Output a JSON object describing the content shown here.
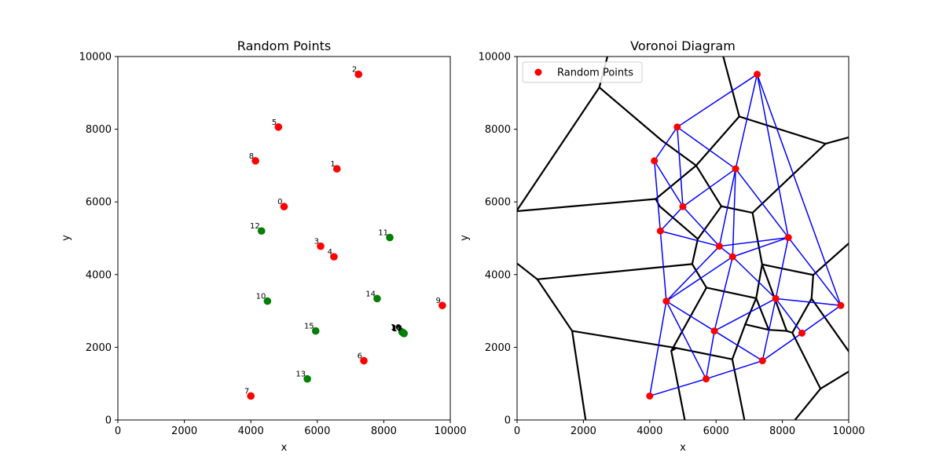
{
  "chart_data": [
    {
      "type": "scatter",
      "title": "Random Points",
      "xlabel": "x",
      "ylabel": "y",
      "xlim": [
        0,
        10000
      ],
      "ylim": [
        0,
        10000
      ],
      "xticks": [
        "0",
        "2000",
        "4000",
        "6000",
        "8000",
        "10000"
      ],
      "yticks": [
        "0",
        "2000",
        "4000",
        "6000",
        "8000",
        "10000"
      ],
      "grid": false,
      "colors": {
        "red_points": "#ff0000",
        "green_points": "#008000"
      },
      "points": [
        {
          "label": "0",
          "x": 5000,
          "y": 5870,
          "color": "red"
        },
        {
          "label": "1",
          "x": 6590,
          "y": 6910,
          "color": "red"
        },
        {
          "label": "2",
          "x": 7240,
          "y": 9510,
          "color": "red"
        },
        {
          "label": "3",
          "x": 6100,
          "y": 4780,
          "color": "red"
        },
        {
          "label": "4",
          "x": 6500,
          "y": 4490,
          "color": "red"
        },
        {
          "label": "5",
          "x": 4830,
          "y": 8060,
          "color": "red"
        },
        {
          "label": "6",
          "x": 7400,
          "y": 1630,
          "color": "red"
        },
        {
          "label": "7",
          "x": 4000,
          "y": 660,
          "color": "red"
        },
        {
          "label": "8",
          "x": 4140,
          "y": 7130,
          "color": "red"
        },
        {
          "label": "9",
          "x": 9760,
          "y": 3150,
          "color": "red"
        },
        {
          "label": "10",
          "x": 4500,
          "y": 3270,
          "color": "green"
        },
        {
          "label": "11",
          "x": 8180,
          "y": 5020,
          "color": "green"
        },
        {
          "label": "12",
          "x": 4320,
          "y": 5200,
          "color": "green"
        },
        {
          "label": "13",
          "x": 5700,
          "y": 1130,
          "color": "green"
        },
        {
          "label": "14",
          "x": 7800,
          "y": 3340,
          "color": "green"
        },
        {
          "label": "15",
          "x": 5950,
          "y": 2450,
          "color": "green"
        },
        {
          "label": "16",
          "x": 8550,
          "y": 2420,
          "color": "green"
        },
        {
          "label": "17",
          "x": 8590,
          "y": 2390,
          "color": "green"
        },
        {
          "label": "18",
          "x": 8570,
          "y": 2410,
          "color": "green"
        },
        {
          "label": "19",
          "x": 8610,
          "y": 2380,
          "color": "green"
        },
        {
          "label": "20",
          "x": 8580,
          "y": 2400,
          "color": "green"
        }
      ]
    },
    {
      "type": "scatter",
      "title": "Voronoi Diagram",
      "xlabel": "x",
      "ylabel": "y",
      "xlim": [
        0,
        10000
      ],
      "ylim": [
        0,
        10000
      ],
      "xticks": [
        "0",
        "2000",
        "4000",
        "6000",
        "8000",
        "10000"
      ],
      "yticks": [
        "0",
        "2000",
        "4000",
        "6000",
        "8000",
        "10000"
      ],
      "grid": false,
      "legend": {
        "position": "upper-left",
        "entries": [
          "Random Points"
        ]
      },
      "colors": {
        "points": "#ff0000",
        "voronoi_edges": "#000000",
        "triangulation_edges": "#0000ff"
      },
      "points": [
        [
          5000,
          5870
        ],
        [
          6590,
          6910
        ],
        [
          7240,
          9510
        ],
        [
          6100,
          4780
        ],
        [
          6500,
          4490
        ],
        [
          4830,
          8060
        ],
        [
          7400,
          1630
        ],
        [
          4000,
          660
        ],
        [
          4140,
          7130
        ],
        [
          9760,
          3150
        ],
        [
          4500,
          3270
        ],
        [
          8180,
          5020
        ],
        [
          4320,
          5200
        ],
        [
          5700,
          1130
        ],
        [
          7800,
          3340
        ],
        [
          5950,
          2450
        ],
        [
          8590,
          2390
        ]
      ],
      "triangulation_edges": [
        [
          [
            4830,
            8060
          ],
          [
            7240,
            9510
          ]
        ],
        [
          [
            7240,
            9510
          ],
          [
            6590,
            6910
          ]
        ],
        [
          [
            4830,
            8060
          ],
          [
            6590,
            6910
          ]
        ],
        [
          [
            4830,
            8060
          ],
          [
            5000,
            5870
          ]
        ],
        [
          [
            4830,
            8060
          ],
          [
            4140,
            7130
          ]
        ],
        [
          [
            4140,
            7130
          ],
          [
            5000,
            5870
          ]
        ],
        [
          [
            5000,
            5870
          ],
          [
            6590,
            6910
          ]
        ],
        [
          [
            4140,
            7130
          ],
          [
            4320,
            5200
          ]
        ],
        [
          [
            4320,
            5200
          ],
          [
            5000,
            5870
          ]
        ],
        [
          [
            7240,
            9510
          ],
          [
            8180,
            5020
          ]
        ],
        [
          [
            7240,
            9510
          ],
          [
            9760,
            3150
          ]
        ],
        [
          [
            6590,
            6910
          ],
          [
            8180,
            5020
          ]
        ],
        [
          [
            6590,
            6910
          ],
          [
            6100,
            4780
          ]
        ],
        [
          [
            6590,
            6910
          ],
          [
            6500,
            4490
          ]
        ],
        [
          [
            5000,
            5870
          ],
          [
            6100,
            4780
          ]
        ],
        [
          [
            4320,
            5200
          ],
          [
            6100,
            4780
          ]
        ],
        [
          [
            6100,
            4780
          ],
          [
            6500,
            4490
          ]
        ],
        [
          [
            6100,
            4780
          ],
          [
            8180,
            5020
          ]
        ],
        [
          [
            6500,
            4490
          ],
          [
            8180,
            5020
          ]
        ],
        [
          [
            8180,
            5020
          ],
          [
            9760,
            3150
          ]
        ],
        [
          [
            8180,
            5020
          ],
          [
            7800,
            3340
          ]
        ],
        [
          [
            6100,
            4780
          ],
          [
            4500,
            3270
          ]
        ],
        [
          [
            6500,
            4490
          ],
          [
            4500,
            3270
          ]
        ],
        [
          [
            6500,
            4490
          ],
          [
            5950,
            2450
          ]
        ],
        [
          [
            6500,
            4490
          ],
          [
            7800,
            3340
          ]
        ],
        [
          [
            7800,
            3340
          ],
          [
            9760,
            3150
          ]
        ],
        [
          [
            7800,
            3340
          ],
          [
            8590,
            2390
          ]
        ],
        [
          [
            8590,
            2390
          ],
          [
            9760,
            3150
          ]
        ],
        [
          [
            7800,
            3340
          ],
          [
            7400,
            1630
          ]
        ],
        [
          [
            7800,
            3340
          ],
          [
            5950,
            2450
          ]
        ],
        [
          [
            5950,
            2450
          ],
          [
            7400,
            1630
          ]
        ],
        [
          [
            7400,
            1630
          ],
          [
            8590,
            2390
          ]
        ],
        [
          [
            4500,
            3270
          ],
          [
            5950,
            2450
          ]
        ],
        [
          [
            4500,
            3270
          ],
          [
            5700,
            1130
          ]
        ],
        [
          [
            5950,
            2450
          ],
          [
            5700,
            1130
          ]
        ],
        [
          [
            5700,
            1130
          ],
          [
            7400,
            1630
          ]
        ],
        [
          [
            4000,
            660
          ],
          [
            5700,
            1130
          ]
        ],
        [
          [
            4000,
            660
          ],
          [
            4500,
            3270
          ]
        ],
        [
          [
            4320,
            5200
          ],
          [
            4500,
            3270
          ]
        ]
      ],
      "voronoi_edges": [
        [
          [
            2480,
            9150
          ],
          [
            2840,
            10400
          ]
        ],
        [
          [
            2480,
            9150
          ],
          [
            -200,
            5500
          ]
        ],
        [
          [
            2480,
            9150
          ],
          [
            4350,
            7700
          ]
        ],
        [
          [
            4350,
            7700
          ],
          [
            5400,
            7000
          ]
        ],
        [
          [
            5400,
            7000
          ],
          [
            6700,
            8350
          ]
        ],
        [
          [
            6700,
            8350
          ],
          [
            6100,
            10400
          ]
        ],
        [
          [
            6700,
            8350
          ],
          [
            9300,
            7600
          ]
        ],
        [
          [
            9300,
            7600
          ],
          [
            10300,
            7850
          ]
        ],
        [
          [
            9300,
            7600
          ],
          [
            7100,
            5700
          ]
        ],
        [
          [
            5400,
            7000
          ],
          [
            4180,
            6080
          ]
        ],
        [
          [
            4180,
            6080
          ],
          [
            -200,
            5730
          ]
        ],
        [
          [
            4180,
            6080
          ],
          [
            4300,
            5880
          ]
        ],
        [
          [
            4300,
            5880
          ],
          [
            5450,
            4980
          ]
        ],
        [
          [
            5450,
            4980
          ],
          [
            6160,
            5880
          ]
        ],
        [
          [
            6160,
            5880
          ],
          [
            5400,
            7000
          ]
        ],
        [
          [
            6160,
            5880
          ],
          [
            7100,
            5700
          ]
        ],
        [
          [
            7100,
            5700
          ],
          [
            7390,
            4280
          ]
        ],
        [
          [
            7390,
            4280
          ],
          [
            8930,
            3990
          ]
        ],
        [
          [
            8930,
            3990
          ],
          [
            10300,
            5100
          ]
        ],
        [
          [
            8930,
            3990
          ],
          [
            8880,
            3340
          ]
        ],
        [
          [
            8880,
            3340
          ],
          [
            10300,
            1500
          ]
        ],
        [
          [
            8880,
            3340
          ],
          [
            8300,
            2400
          ]
        ],
        [
          [
            8300,
            2400
          ],
          [
            8130,
            2450
          ]
        ],
        [
          [
            8130,
            2450
          ],
          [
            7390,
            4280
          ]
        ],
        [
          [
            8130,
            2450
          ],
          [
            7590,
            2480
          ]
        ],
        [
          [
            7590,
            2480
          ],
          [
            7210,
            3350
          ]
        ],
        [
          [
            7210,
            3350
          ],
          [
            7390,
            4280
          ]
        ],
        [
          [
            8300,
            2400
          ],
          [
            9150,
            860
          ]
        ],
        [
          [
            9150,
            860
          ],
          [
            10300,
            1500
          ]
        ],
        [
          [
            9150,
            860
          ],
          [
            8200,
            -200
          ]
        ],
        [
          [
            5450,
            4980
          ],
          [
            5280,
            4290
          ]
        ],
        [
          [
            5280,
            4290
          ],
          [
            5710,
            3640
          ]
        ],
        [
          [
            5710,
            3640
          ],
          [
            7210,
            3350
          ]
        ],
        [
          [
            5280,
            4290
          ],
          [
            610,
            3870
          ]
        ],
        [
          [
            610,
            3870
          ],
          [
            -200,
            4450
          ]
        ],
        [
          [
            610,
            3870
          ],
          [
            1660,
            2450
          ]
        ],
        [
          [
            1660,
            2450
          ],
          [
            2100,
            -200
          ]
        ],
        [
          [
            1660,
            2450
          ],
          [
            4800,
            1980
          ]
        ],
        [
          [
            4800,
            1980
          ],
          [
            4650,
            1900
          ]
        ],
        [
          [
            4650,
            1900
          ],
          [
            5710,
            3640
          ]
        ],
        [
          [
            4650,
            1900
          ],
          [
            5100,
            -200
          ]
        ],
        [
          [
            4800,
            1980
          ],
          [
            6490,
            1670
          ]
        ],
        [
          [
            6490,
            1670
          ],
          [
            6880,
            2630
          ]
        ],
        [
          [
            6880,
            2630
          ],
          [
            7210,
            3350
          ]
        ],
        [
          [
            6880,
            2630
          ],
          [
            7590,
            2480
          ]
        ],
        [
          [
            6490,
            1670
          ],
          [
            6900,
            -200
          ]
        ]
      ]
    }
  ]
}
